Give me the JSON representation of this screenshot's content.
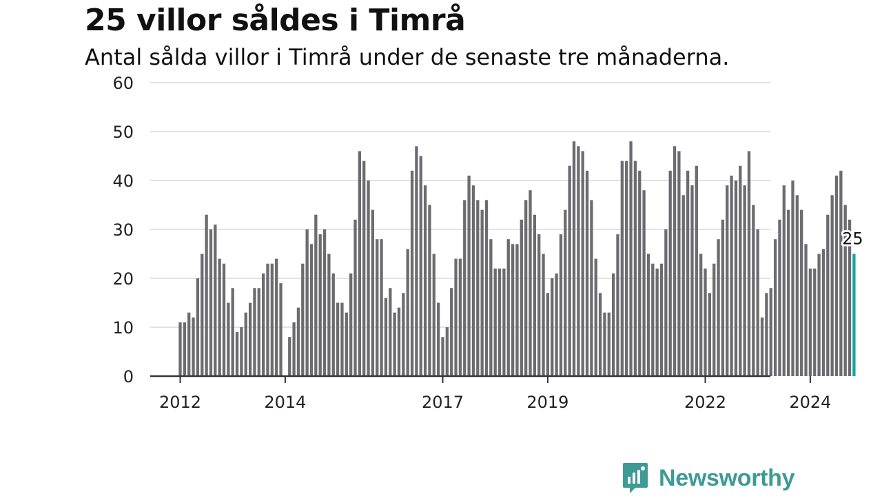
{
  "title": "25 villor såldes i Timrå",
  "subtitle": "Antal sålda villor i Timrå under de senaste tre månaderna.",
  "brand": {
    "name": "Newsworthy",
    "icon": "newsworthy-logo-icon"
  },
  "colors": {
    "bar": "#6b6b70",
    "highlight": "#1aa3a3",
    "grid": "#d9d9d9",
    "axis": "#333333",
    "brand": "#3d9a97"
  },
  "chart_data": {
    "type": "bar",
    "ylim": [
      0,
      60
    ],
    "yticks": [
      "0",
      "10",
      "20",
      "30",
      "40",
      "50",
      "60"
    ],
    "xticks": [
      "2012",
      "2014",
      "2017",
      "2019",
      "2022",
      "2024"
    ],
    "grid": true,
    "highlight_label": "25",
    "values": [
      11,
      11,
      13,
      12,
      20,
      25,
      33,
      30,
      31,
      24,
      23,
      15,
      18,
      9,
      10,
      13,
      15,
      18,
      18,
      21,
      23,
      23,
      24,
      19,
      null,
      8,
      11,
      14,
      23,
      30,
      27,
      33,
      29,
      30,
      25,
      21,
      15,
      15,
      13,
      21,
      32,
      46,
      44,
      40,
      34,
      28,
      28,
      16,
      18,
      13,
      14,
      17,
      26,
      42,
      47,
      45,
      39,
      35,
      25,
      15,
      8,
      10,
      18,
      24,
      24,
      36,
      41,
      39,
      36,
      34,
      36,
      28,
      22,
      22,
      22,
      28,
      27,
      27,
      32,
      36,
      38,
      33,
      29,
      25,
      17,
      20,
      21,
      29,
      34,
      43,
      48,
      47,
      46,
      42,
      36,
      24,
      17,
      13,
      13,
      21,
      29,
      44,
      44,
      48,
      44,
      42,
      38,
      25,
      23,
      22,
      23,
      30,
      42,
      47,
      46,
      37,
      42,
      39,
      43,
      25,
      22,
      17,
      23,
      28,
      32,
      39,
      41,
      40,
      43,
      39,
      46,
      35,
      30,
      12,
      17,
      18,
      28,
      32,
      39,
      34,
      40,
      37,
      34,
      27,
      22,
      22,
      25,
      26,
      33,
      37,
      41,
      42,
      35,
      32,
      25
    ]
  }
}
